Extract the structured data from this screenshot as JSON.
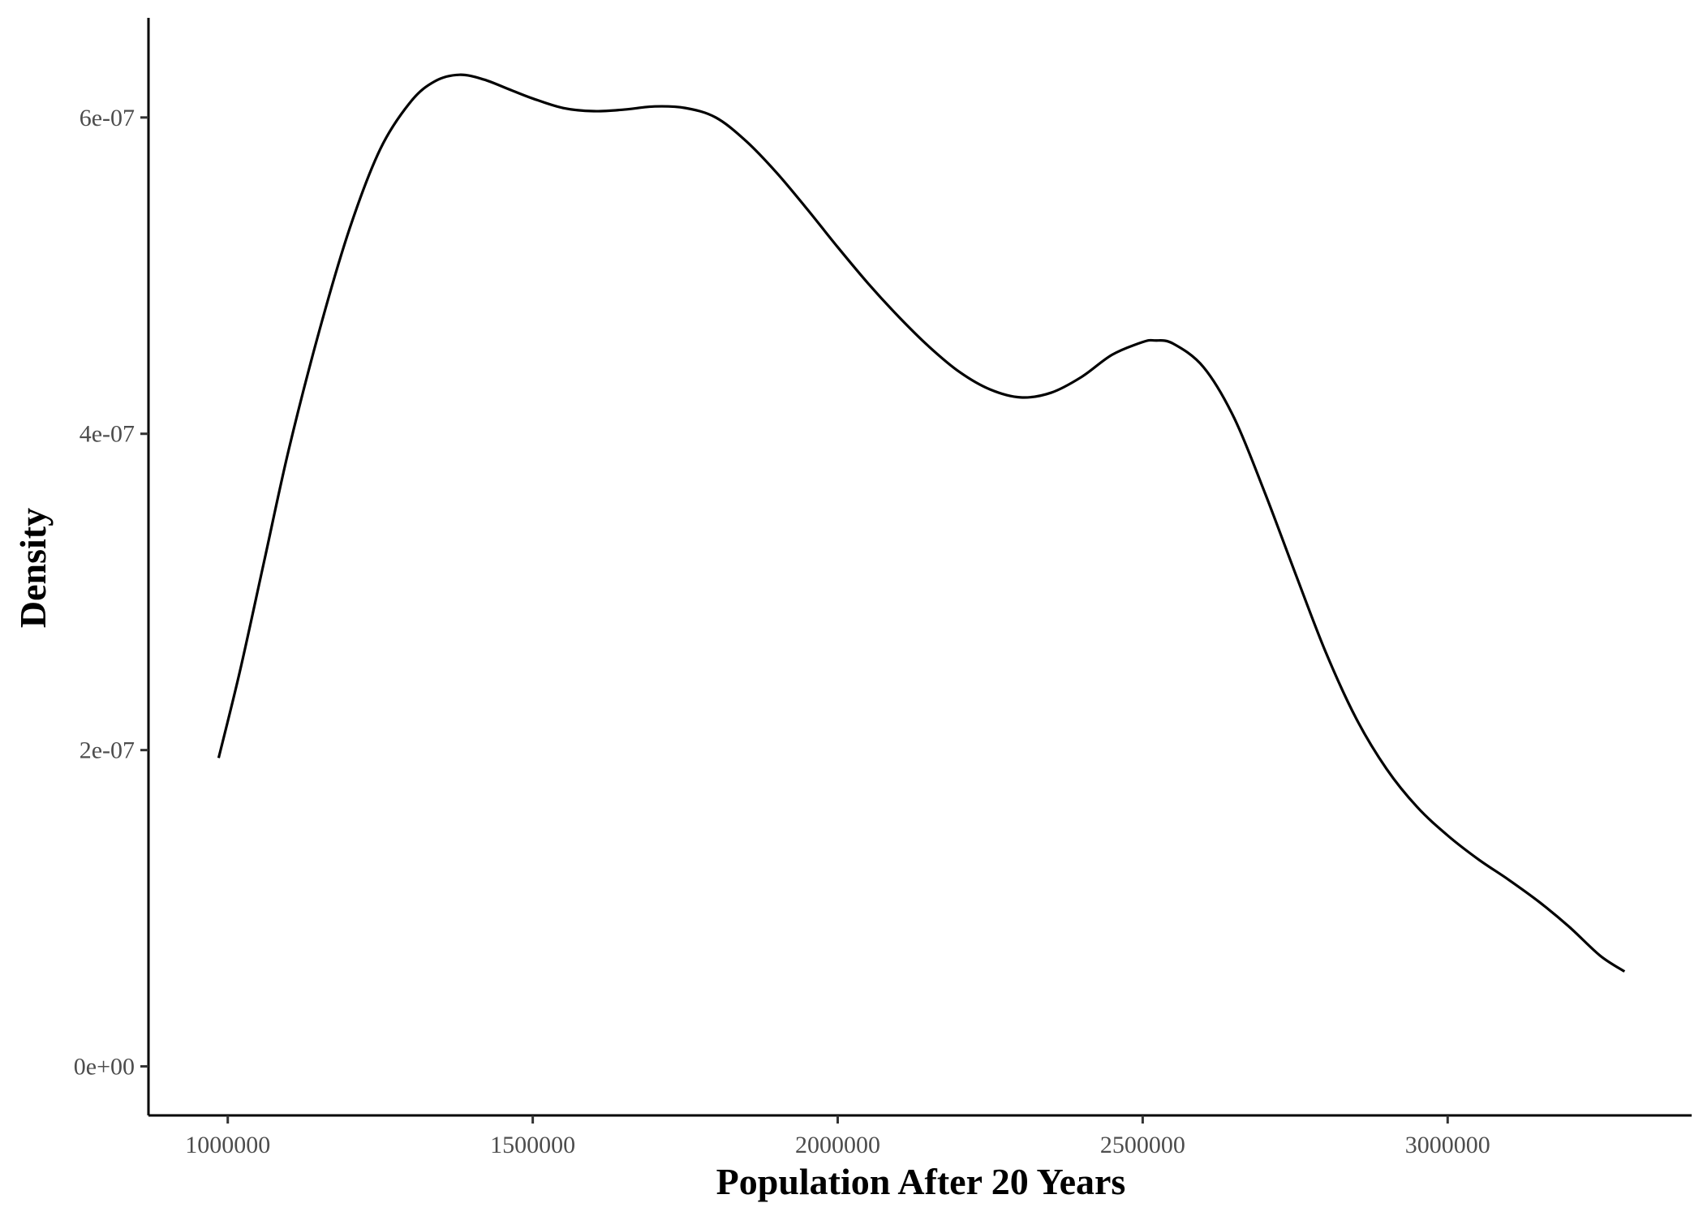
{
  "chart_data": {
    "type": "line",
    "title": "",
    "xlabel": "Population After 20 Years",
    "ylabel": "Density",
    "xlim": [
      870000,
      3400000
    ],
    "ylim": [
      -3.1e-08,
      6.63e-07
    ],
    "xticks": [
      1000000,
      1500000,
      2000000,
      2500000,
      3000000
    ],
    "xtick_labels": [
      "1000000",
      "1500000",
      "2000000",
      "2500000",
      "3000000"
    ],
    "yticks": [
      0,
      2e-07,
      4e-07,
      6e-07
    ],
    "ytick_labels": [
      "0e+00",
      "2e-07",
      "4e-07",
      "6e-07"
    ],
    "grid": false,
    "line_color": "#000000",
    "series": [
      {
        "x": [
          985000,
          1020000,
          1060000,
          1100000,
          1150000,
          1200000,
          1250000,
          1300000,
          1340000,
          1380000,
          1420000,
          1460000,
          1500000,
          1550000,
          1600000,
          1650000,
          1700000,
          1750000,
          1800000,
          1850000,
          1900000,
          1950000,
          2000000,
          2050000,
          2100000,
          2150000,
          2200000,
          2250000,
          2300000,
          2350000,
          2400000,
          2450000,
          2500000,
          2520000,
          2550000,
          2600000,
          2650000,
          2700000,
          2750000,
          2800000,
          2850000,
          2900000,
          2950000,
          3000000,
          3050000,
          3100000,
          3150000,
          3200000,
          3250000,
          3290000
        ],
        "y": [
          1.95e-07,
          2.5e-07,
          3.2e-07,
          3.9e-07,
          4.65e-07,
          5.3e-07,
          5.8e-07,
          6.1e-07,
          6.23e-07,
          6.27e-07,
          6.24e-07,
          6.18e-07,
          6.12e-07,
          6.06e-07,
          6.04e-07,
          6.05e-07,
          6.07e-07,
          6.06e-07,
          6e-07,
          5.85e-07,
          5.65e-07,
          5.42e-07,
          5.18e-07,
          4.95e-07,
          4.74e-07,
          4.55e-07,
          4.39e-07,
          4.28e-07,
          4.23e-07,
          4.26e-07,
          4.36e-07,
          4.5e-07,
          4.58e-07,
          4.59e-07,
          4.57e-07,
          4.42e-07,
          4.1e-07,
          3.63e-07,
          3.12e-07,
          2.62e-07,
          2.2e-07,
          1.88e-07,
          1.64e-07,
          1.46e-07,
          1.31e-07,
          1.18e-07,
          1.04e-07,
          8.8e-08,
          7e-08,
          6e-08
        ]
      }
    ]
  }
}
